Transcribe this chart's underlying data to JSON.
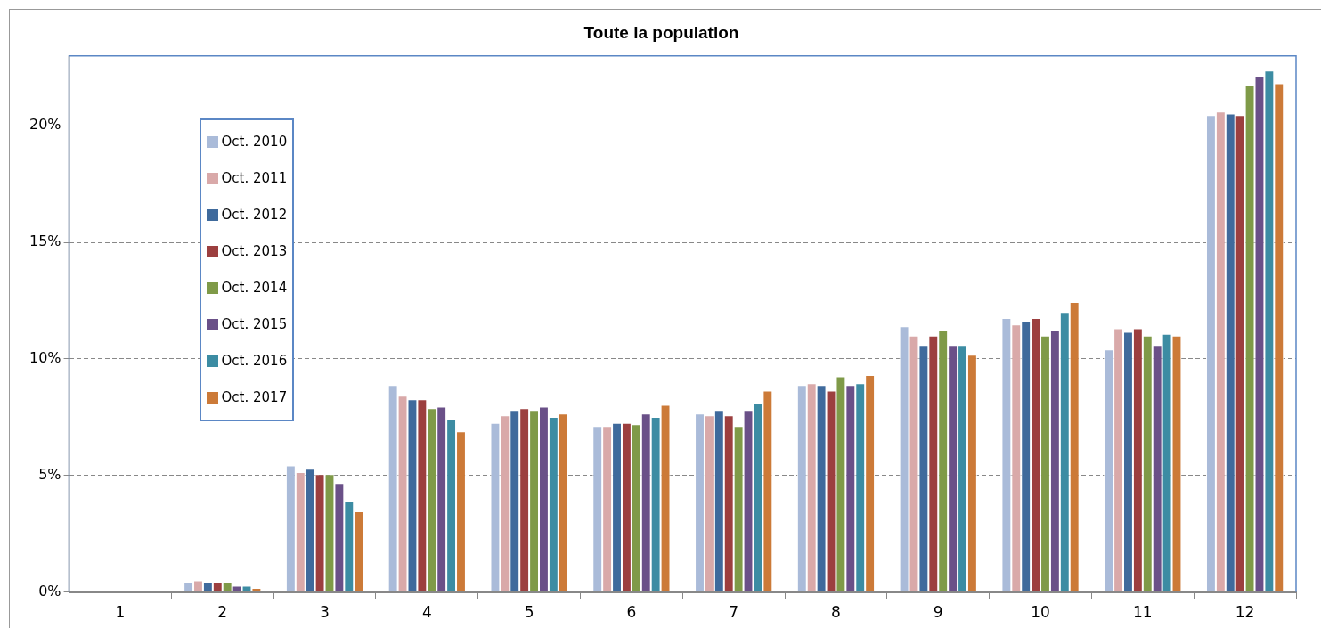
{
  "chart_data": {
    "type": "bar",
    "title": "Toute la population",
    "categories": [
      "1",
      "2",
      "3",
      "4",
      "5",
      "6",
      "7",
      "8",
      "9",
      "10",
      "11",
      "12"
    ],
    "series": [
      {
        "name": "Oct. 2010",
        "color": "#aabbd9",
        "values": [
          0,
          0.42,
          5.43,
          8.88,
          7.26,
          7.12,
          7.66,
          8.88,
          11.4,
          11.76,
          10.41,
          20.46
        ]
      },
      {
        "name": "Oct. 2011",
        "color": "#d9a9a9",
        "values": [
          0,
          0.5,
          5.14,
          8.42,
          7.58,
          7.12,
          7.58,
          8.96,
          11.0,
          11.48,
          11.32,
          20.61
        ]
      },
      {
        "name": "Oct. 2012",
        "color": "#3f6a9c",
        "values": [
          0,
          0.42,
          5.29,
          8.27,
          7.81,
          7.26,
          7.81,
          8.88,
          10.6,
          11.63,
          11.16,
          20.53
        ]
      },
      {
        "name": "Oct. 2013",
        "color": "#9c3f3f",
        "values": [
          0,
          0.42,
          5.06,
          8.27,
          7.89,
          7.26,
          7.58,
          8.64,
          11.0,
          11.76,
          11.32,
          20.46
        ]
      },
      {
        "name": "Oct. 2014",
        "color": "#7f9a48",
        "values": [
          0,
          0.42,
          5.06,
          7.89,
          7.81,
          7.2,
          7.12,
          9.25,
          11.22,
          11.0,
          11.0,
          21.76
        ]
      },
      {
        "name": "Oct. 2015",
        "color": "#6a5088",
        "values": [
          0,
          0.27,
          4.68,
          7.95,
          7.95,
          7.66,
          7.81,
          8.88,
          10.6,
          11.22,
          10.6,
          22.14
        ]
      },
      {
        "name": "Oct. 2016",
        "color": "#3c8ca3",
        "values": [
          0,
          0.27,
          3.92,
          7.43,
          7.51,
          7.51,
          8.12,
          8.96,
          10.6,
          12.01,
          11.08,
          22.37
        ]
      },
      {
        "name": "Oct. 2017",
        "color": "#cc7a38",
        "values": [
          0,
          0.18,
          3.46,
          6.89,
          7.66,
          8.03,
          8.64,
          9.31,
          10.18,
          12.44,
          11.0,
          21.83
        ]
      }
    ],
    "ylim": [
      0,
      23
    ],
    "yticks": [
      {
        "value": 0,
        "label": "0%"
      },
      {
        "value": 5,
        "label": "5%"
      },
      {
        "value": 10,
        "label": "10%"
      },
      {
        "value": 15,
        "label": "15%"
      },
      {
        "value": 20,
        "label": "20%"
      }
    ],
    "grid": "y",
    "legend": "top left"
  }
}
